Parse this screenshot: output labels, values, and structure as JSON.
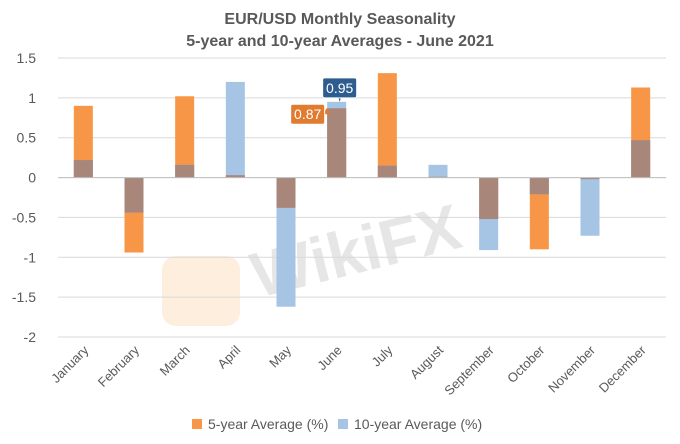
{
  "chart_data": {
    "type": "bar",
    "title": "EUR/USD Monthly Seasonality",
    "subtitle": "5-year and 10-year Averages - June 2021",
    "categories": [
      "January",
      "February",
      "March",
      "April",
      "May",
      "June",
      "July",
      "August",
      "September",
      "October",
      "November",
      "December"
    ],
    "series": [
      {
        "name": "5-year Average (%)",
        "color": "#F79646",
        "values": [
          0.9,
          -0.94,
          1.02,
          0.03,
          -0.38,
          0.87,
          1.31,
          0.01,
          -0.52,
          -0.9,
          -0.02,
          1.13
        ]
      },
      {
        "name": "10-year Average (%)",
        "color": "#A6C4E3",
        "values": [
          0.22,
          -0.44,
          0.16,
          1.2,
          -1.62,
          0.95,
          0.15,
          0.16,
          -0.91,
          -0.21,
          -0.73,
          0.47
        ]
      }
    ],
    "overlap_color": "#A8877A",
    "ylim": [
      -2,
      1.5
    ],
    "yticks": [
      "1.5",
      "1",
      "0.5",
      "0",
      "-0.5",
      "-1",
      "-1.5",
      "-2"
    ],
    "ytick_values": [
      1.5,
      1,
      0.5,
      0,
      -0.5,
      -1,
      -1.5,
      -2
    ],
    "grid": true,
    "legend": "bottom",
    "annotations": [
      {
        "label": "0.87",
        "category": "June",
        "series": 0,
        "color": "#E07B2F"
      },
      {
        "label": "0.95",
        "category": "June",
        "series": 1,
        "color": "#2E5C8E"
      }
    ],
    "watermark": "WikiFX"
  }
}
